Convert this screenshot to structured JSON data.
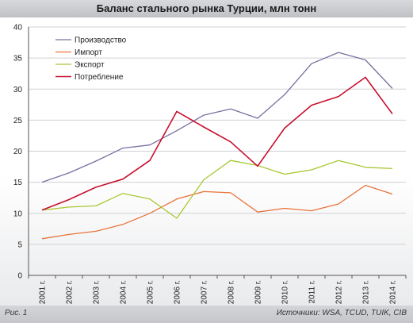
{
  "header": {
    "title": "Баланс стального рынка Турции, млн тонн"
  },
  "footer": {
    "figure_label": "Рис. 1",
    "sources": "Источники: WSA, TCUD, TUIK, CIB"
  },
  "chart_data": {
    "type": "line",
    "title": "Баланс стального рынка Турции, млн тонн",
    "xlabel": "",
    "ylabel": "",
    "ylim": [
      0,
      40
    ],
    "yticks": [
      0,
      5,
      10,
      15,
      20,
      25,
      30,
      35,
      40
    ],
    "grid": true,
    "legend_position": "top-left",
    "categories": [
      "2001 г.",
      "2002 г.",
      "2003 г.",
      "2004 г.",
      "2005 г.",
      "2006 г.",
      "2007 г.",
      "2008 г.",
      "2009 г.",
      "2010 г.",
      "2011 г.",
      "2012 г.",
      "2013 г.",
      "2014 г."
    ],
    "series": [
      {
        "name": "Производство",
        "color": "#7a6fa0",
        "values": [
          15.0,
          16.5,
          18.4,
          20.5,
          21.0,
          23.3,
          25.8,
          26.8,
          25.3,
          29.1,
          34.1,
          35.9,
          34.7,
          30.1
        ]
      },
      {
        "name": "Импорт",
        "color": "#e8733a",
        "values": [
          5.9,
          6.6,
          7.1,
          8.2,
          10.0,
          12.3,
          13.5,
          13.3,
          10.2,
          10.8,
          10.4,
          11.5,
          14.5,
          13.1
        ]
      },
      {
        "name": "Экспорт",
        "color": "#a8c832",
        "values": [
          10.5,
          11.0,
          11.2,
          13.2,
          12.3,
          9.2,
          15.4,
          18.5,
          17.7,
          16.3,
          17.0,
          18.5,
          17.4,
          17.2
        ]
      },
      {
        "name": "Потребление",
        "color": "#c8102e",
        "values": [
          10.5,
          12.2,
          14.2,
          15.5,
          18.5,
          26.4,
          23.9,
          21.5,
          17.6,
          23.7,
          27.4,
          28.8,
          31.9,
          26.0
        ]
      }
    ]
  }
}
